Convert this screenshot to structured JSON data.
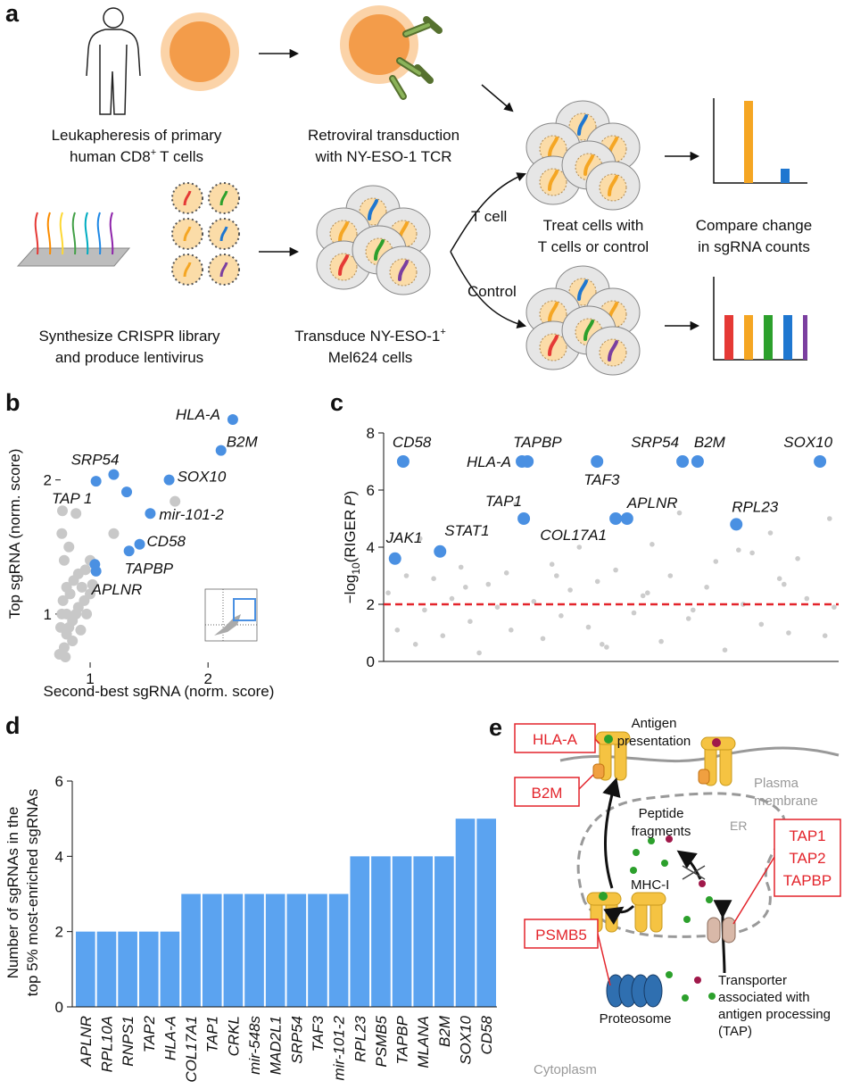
{
  "panel_labels": [
    "a",
    "b",
    "c",
    "d",
    "e"
  ],
  "panel_a": {
    "step1": [
      "Leukapheresis of primary",
      "human CD8",
      "+",
      "T cells"
    ],
    "step2": [
      "Retroviral transduction",
      "with NY-ESO-1 TCR"
    ],
    "step3": [
      "Synthesize CRISPR library",
      "and produce lentivirus"
    ],
    "step4": [
      "Transduce NY-ESO-1",
      "+",
      "Mel624 cells"
    ],
    "branch_top": "T cell",
    "branch_bottom": "Control",
    "step5": [
      "Treat cells with",
      "T cells or control"
    ],
    "step6": [
      "Compare change",
      "in sgRNA counts"
    ]
  },
  "panel_e": {
    "genes": [
      "HLA-A",
      "B2M",
      "TAP1",
      "TAP2",
      "TAPBP",
      "PSMB5"
    ],
    "antigen": [
      "Antigen",
      "presentation"
    ],
    "membrane": [
      "Plasma",
      "membrane"
    ],
    "er": "ER",
    "fragments": [
      "Peptide",
      "fragments"
    ],
    "mhc": "MHC-I",
    "transporter": [
      "Transporter",
      "associated with",
      "antigen processing",
      "(TAP)"
    ],
    "proteosome": "Proteosome",
    "cytoplasm": "Cytoplasm"
  },
  "chart_data": [
    {
      "type": "scatter",
      "x_label": "Second-best sgRNA (norm. score)",
      "y_label": "Top sgRNA (norm. score)",
      "xlim": [
        0.75,
        2.43
      ],
      "ylim": [
        0.64,
        2.55
      ],
      "xticks": [
        1,
        2
      ],
      "yticks": [
        1,
        2
      ],
      "series": [
        {
          "color": "#c8c8c8",
          "x": [
            0.78,
            0.8,
            0.82,
            0.85,
            0.88,
            0.9,
            0.75,
            0.77,
            0.8,
            0.83,
            0.86,
            0.9,
            0.93,
            0.95,
            0.97,
            1.0,
            0.78,
            0.82,
            0.76,
            0.765,
            0.88,
            1.0,
            0.96,
            1.2,
            1.72,
            0.74,
            0.79,
            0.85,
            0.92,
            1.02,
            0.76,
            0.8
          ],
          "values": [
            0.75,
            0.85,
            0.9,
            0.95,
            1.0,
            1.05,
            0.9,
            1.1,
            1.2,
            1.15,
            1.25,
            1.3,
            1.2,
            1.1,
            1.0,
            1.15,
            1.4,
            1.5,
            1.6,
            1.77,
            1.75,
            1.4,
            1.33,
            1.6,
            1.84,
            0.7,
            0.68,
            0.8,
            0.88,
            1.22,
            1.0,
            1.0
          ],
          "labels": [
            null,
            null,
            null,
            null,
            null,
            null,
            null,
            null,
            null,
            null,
            null,
            null,
            null,
            null,
            null,
            null,
            null,
            null,
            null,
            "TAP 1",
            null,
            null,
            null,
            null,
            null,
            null,
            null,
            null,
            null,
            null,
            null,
            null
          ]
        },
        {
          "color": "#4a90e2",
          "x": [
            2.21,
            2.11,
            1.67,
            1.2,
            1.51,
            1.42,
            1.33,
            1.05,
            1.05,
            1.31,
            1.04
          ],
          "values": [
            2.45,
            2.22,
            2.0,
            2.04,
            1.75,
            1.52,
            1.47,
            1.32,
            1.99,
            1.91,
            1.37
          ],
          "labels": [
            "HLA-A",
            "B2M",
            "SOX10",
            "SRP54",
            "mir-101-2",
            "CD58",
            "TAPBP",
            "APLNR",
            null,
            null,
            null
          ]
        }
      ]
    },
    {
      "type": "scatter",
      "y_label_parts": [
        "−log",
        "10",
        "(RIGER",
        "P",
        ")"
      ],
      "xlim": [
        0,
        100
      ],
      "ylim": [
        0,
        8
      ],
      "yticks": [
        0,
        2,
        4,
        6,
        8
      ],
      "threshold": {
        "value": 2,
        "color": "#e3242b"
      },
      "series": [
        {
          "color": "#cccccc",
          "x": [
            1,
            3,
            5,
            7,
            9,
            11,
            13,
            15,
            17,
            19,
            21,
            23,
            25,
            27,
            29,
            33,
            35,
            37,
            39,
            41,
            43,
            45,
            47,
            49,
            51,
            55,
            57,
            59,
            61,
            63,
            65,
            67,
            71,
            73,
            75,
            79,
            81,
            83,
            85,
            87,
            89,
            91,
            93,
            97,
            99,
            8,
            18,
            28,
            38,
            48,
            58,
            68,
            78,
            88,
            98
          ],
          "values": [
            2.4,
            1.1,
            3.0,
            0.6,
            1.8,
            2.9,
            0.9,
            2.2,
            3.3,
            1.4,
            0.3,
            2.7,
            1.9,
            3.1,
            5.5,
            2.1,
            0.8,
            3.4,
            1.6,
            2.5,
            4.0,
            1.2,
            2.8,
            0.5,
            3.2,
            1.7,
            2.3,
            4.1,
            0.7,
            3.0,
            5.2,
            1.5,
            2.6,
            3.5,
            0.4,
            2.0,
            3.8,
            1.3,
            4.5,
            2.9,
            1.0,
            3.6,
            2.2,
            0.9,
            1.9,
            4.3,
            2.6,
            1.1,
            3.0,
            0.6,
            2.4,
            1.8,
            3.9,
            2.7,
            5.0
          ]
        },
        {
          "color": "#4a90e2",
          "x": [
            4.3,
            30.4,
            31.6,
            46.9,
            65.7,
            69.0,
            95.9,
            30.8,
            51.0,
            53.5,
            77.5,
            2.5,
            12.4
          ],
          "values": [
            7,
            7,
            7,
            7,
            7,
            7,
            7,
            5,
            5,
            5,
            4.8,
            3.6,
            3.85
          ],
          "labels": [
            "CD58",
            "HLA-A",
            "TAPBP",
            "TAF3",
            "SRP54",
            "B2M",
            "SOX10",
            "TAP1",
            "COL17A1",
            "APLNR",
            "RPL23",
            "JAK1",
            "STAT1"
          ]
        }
      ]
    },
    {
      "type": "bar",
      "y_label": [
        "Number of sgRNAs in the",
        "top 5% most-enriched sgRNAs"
      ],
      "categories": [
        "APLNR",
        "RPL10A",
        "RNPS1",
        "TAP2",
        "HLA-A",
        "COL17A1",
        "TAP1",
        "CRKL",
        "mir-548s",
        "MAD2L1",
        "SRP54",
        "TAF3",
        "mir-101-2",
        "RPL23",
        "PSMB5",
        "TAPBP",
        "MLANA",
        "B2M",
        "SOX10",
        "CD58"
      ],
      "values": [
        2,
        2,
        2,
        2,
        2,
        3,
        3,
        3,
        3,
        3,
        3,
        3,
        3,
        4,
        4,
        4,
        4,
        4,
        5,
        5
      ],
      "color": "#5ba3f0",
      "ylim": [
        0,
        6
      ],
      "yticks": [
        0,
        2,
        4,
        6
      ]
    }
  ]
}
